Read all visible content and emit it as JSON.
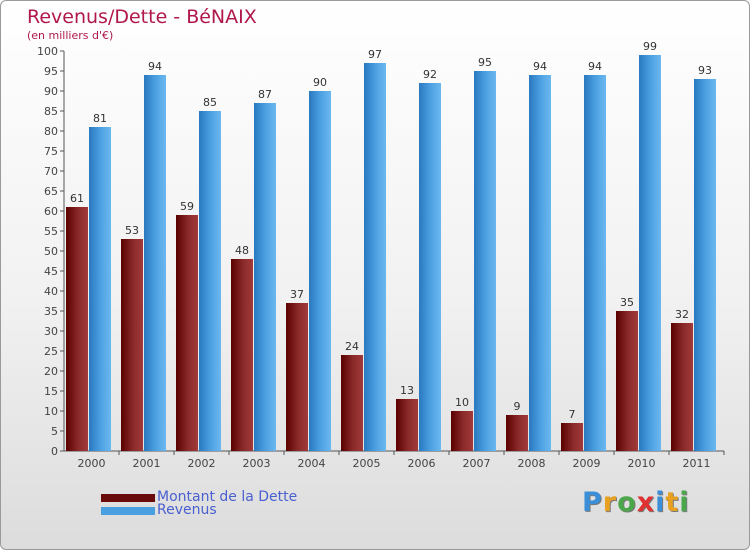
{
  "title": "Revenus/Dette - BéNAIX",
  "subtitle": "(en milliers d'€)",
  "logo": {
    "text": "Proxiti",
    "letter_colors": [
      "#3a8fd8",
      "#e8a020",
      "#4aa84a",
      "#e03030",
      "#3a8fd8",
      "#e8a020",
      "#4aa84a"
    ]
  },
  "chart_data": {
    "type": "bar",
    "title": "Revenus/Dette - BéNAIX",
    "subtitle": "(en milliers d'€)",
    "categories": [
      "2000",
      "2001",
      "2002",
      "2003",
      "2004",
      "2005",
      "2006",
      "2007",
      "2008",
      "2009",
      "2010",
      "2011"
    ],
    "series": [
      {
        "name": "Montant de la Dette",
        "color": "#7a1a1a",
        "values": [
          61,
          53,
          59,
          48,
          37,
          24,
          13,
          10,
          9,
          7,
          35,
          32
        ]
      },
      {
        "name": "Revenus",
        "color": "#4a9fe0",
        "values": [
          81,
          94,
          85,
          87,
          90,
          97,
          92,
          95,
          94,
          94,
          99,
          93
        ]
      }
    ],
    "ylim": [
      0,
      100
    ],
    "ytick_step": 5,
    "grid": false,
    "legend_position": "bottom-left"
  }
}
